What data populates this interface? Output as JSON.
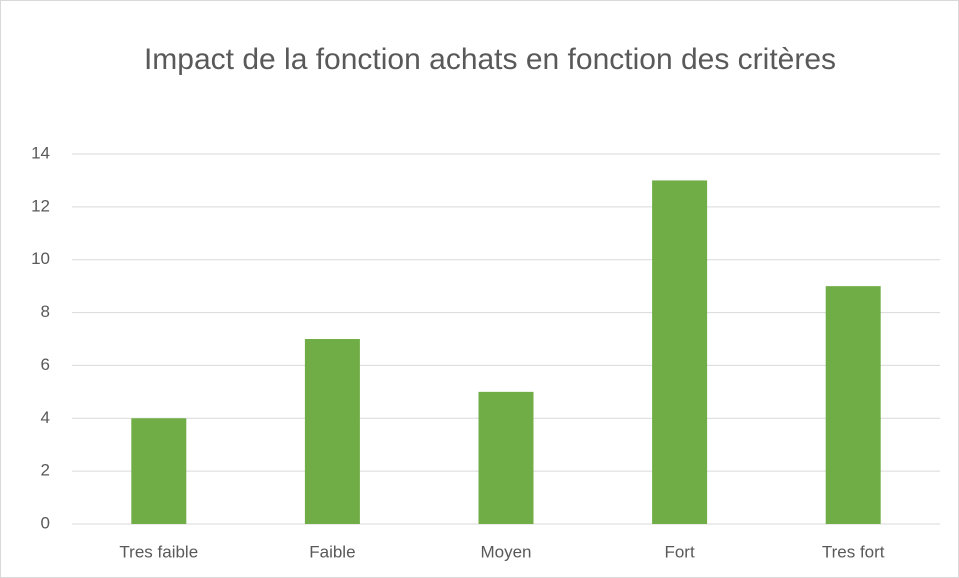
{
  "chart_data": {
    "type": "bar",
    "title": "Impact de la fonction achats en fonction des critères",
    "categories": [
      "Tres faible",
      "Faible",
      "Moyen",
      "Fort",
      "Tres fort"
    ],
    "values": [
      4,
      7,
      5,
      13,
      9
    ],
    "color": "#70ad47",
    "ylim": [
      0,
      14
    ],
    "yticks": [
      0,
      2,
      4,
      6,
      8,
      10,
      12,
      14
    ],
    "grid": true
  }
}
